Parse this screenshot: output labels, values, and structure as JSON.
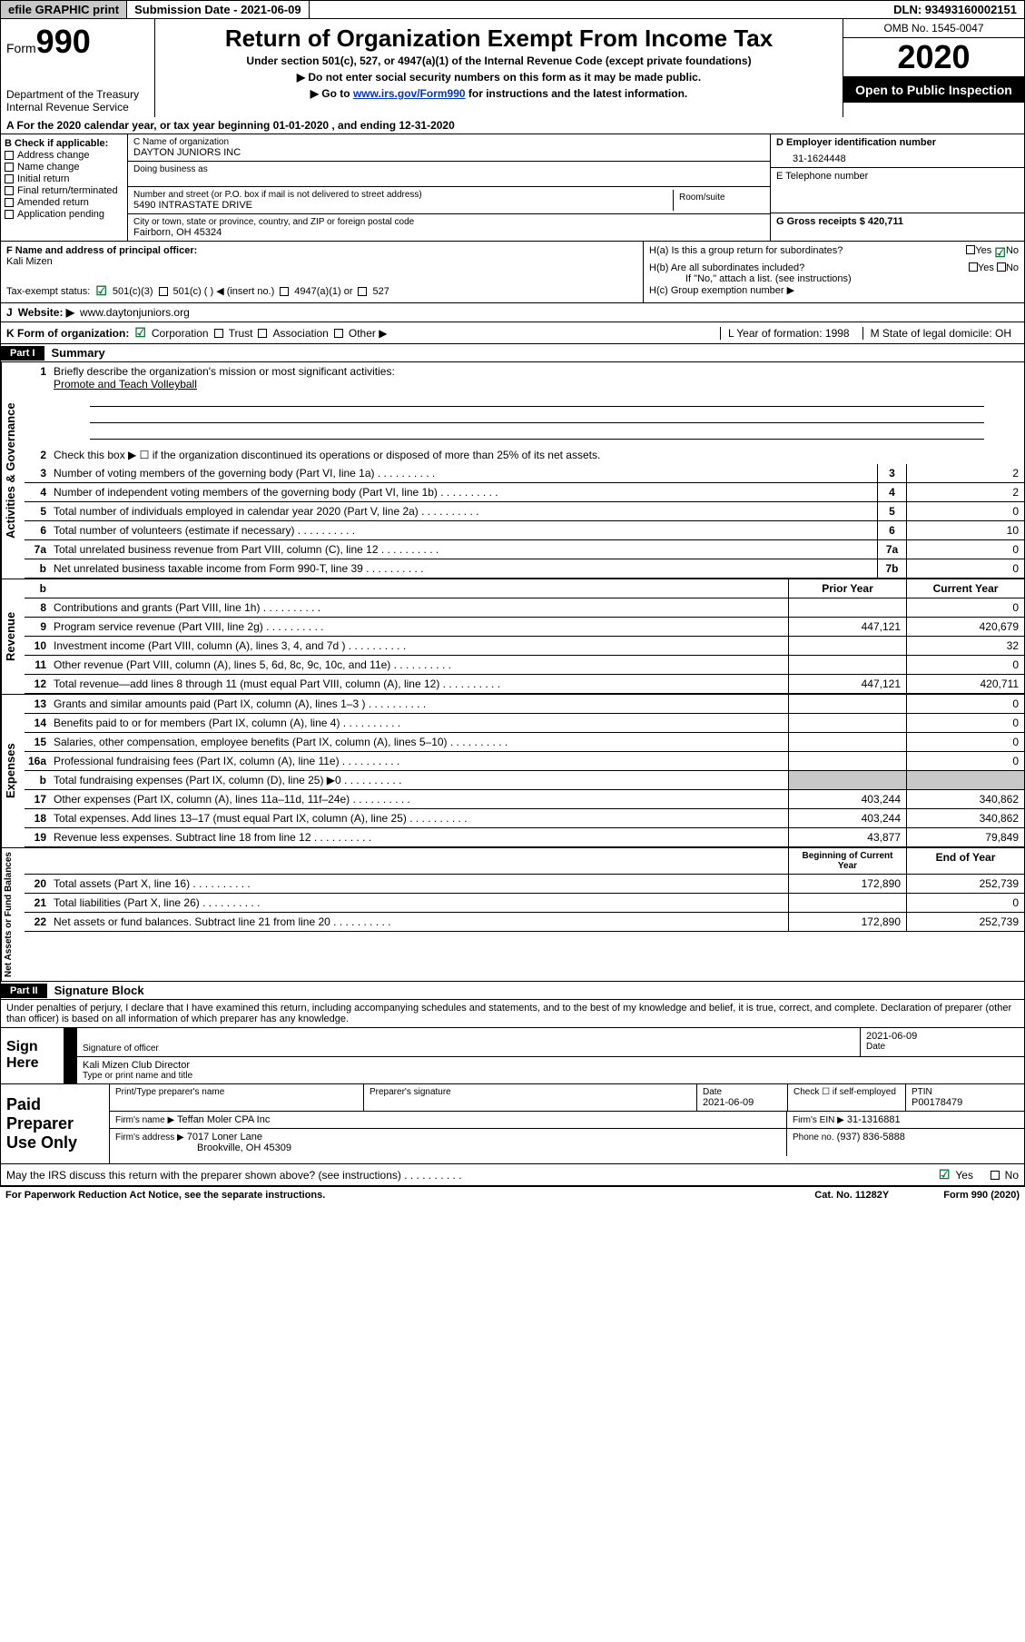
{
  "top": {
    "efile": "efile GRAPHIC print",
    "submission_label": "Submission Date - 2021-06-09",
    "dln_label": "DLN: 93493160002151"
  },
  "header": {
    "form_prefix": "Form",
    "form_no": "990",
    "dept1": "Department of the Treasury",
    "dept2": "Internal Revenue Service",
    "title": "Return of Organization Exempt From Income Tax",
    "subtitle": "Under section 501(c), 527, or 4947(a)(1) of the Internal Revenue Code (except private foundations)",
    "note1": "▶ Do not enter social security numbers on this form as it may be made public.",
    "note2_pre": "▶ Go to ",
    "note2_link": "www.irs.gov/Form990",
    "note2_post": " for instructions and the latest information.",
    "omb": "OMB No. 1545-0047",
    "year": "2020",
    "public": "Open to Public Inspection"
  },
  "rowA": "A For the 2020 calendar year, or tax year beginning 01-01-2020    , and ending 12-31-2020",
  "colB": {
    "title": "B Check if applicable:",
    "items": [
      "Address change",
      "Name change",
      "Initial return",
      "Final return/terminated",
      "Amended return",
      "Application pending"
    ]
  },
  "colC": {
    "name_lbl": "C Name of organization",
    "name": "DAYTON JUNIORS INC",
    "dba_lbl": "Doing business as",
    "addr_lbl": "Number and street (or P.O. box if mail is not delivered to street address)",
    "room_lbl": "Room/suite",
    "addr": "5490 INTRASTATE DRIVE",
    "city_lbl": "City or town, state or province, country, and ZIP or foreign postal code",
    "city": "Fairborn, OH  45324"
  },
  "colD": {
    "ein_lbl": "D Employer identification number",
    "ein": "31-1624448",
    "tel_lbl": "E Telephone number",
    "gross_lbl": "G Gross receipts $ 420,711"
  },
  "rowFH": {
    "f_lbl": "F  Name and address of principal officer:",
    "f_name": "Kali Mizen",
    "ha": "H(a)  Is this a group return for subordinates?",
    "hb": "H(b)  Are all subordinates included?",
    "hb_note": "If \"No,\" attach a list. (see instructions)",
    "hc": "H(c)  Group exemption number ▶",
    "yes": "Yes",
    "no": "No"
  },
  "rowI": {
    "lbl": "Tax-exempt status:",
    "o1": "501(c)(3)",
    "o2": "501(c) (  ) ◀ (insert no.)",
    "o3": "4947(a)(1) or",
    "o4": "527"
  },
  "rowJ": {
    "lbl": "J",
    "web": "Website: ▶",
    "val": "  www.daytonjuniors.org"
  },
  "rowK": {
    "lbl": "K Form of organization:",
    "opts": [
      "Corporation",
      "Trust",
      "Association",
      "Other ▶"
    ],
    "l_lbl": "L Year of formation: 1998",
    "m_lbl": "M State of legal domicile: OH"
  },
  "part1": {
    "hdr": "Part I",
    "title": "Summary",
    "gov_lbl": "Activities & Governance",
    "l1": "Briefly describe the organization's mission or most significant activities:",
    "l1_val": "Promote and Teach Volleyball",
    "l2": "Check this box ▶ ☐  if the organization discontinued its operations or disposed of more than 25% of its net assets.",
    "lines": [
      {
        "n": "3",
        "t": "Number of voting members of the governing body (Part VI, line 1a)",
        "c": "3",
        "v": "2"
      },
      {
        "n": "4",
        "t": "Number of independent voting members of the governing body (Part VI, line 1b)",
        "c": "4",
        "v": "2"
      },
      {
        "n": "5",
        "t": "Total number of individuals employed in calendar year 2020 (Part V, line 2a)",
        "c": "5",
        "v": "0"
      },
      {
        "n": "6",
        "t": "Total number of volunteers (estimate if necessary)",
        "c": "6",
        "v": "10"
      },
      {
        "n": "7a",
        "t": "Total unrelated business revenue from Part VIII, column (C), line 12",
        "c": "7a",
        "v": "0"
      },
      {
        "n": "b",
        "t": "Net unrelated business taxable income from Form 990-T, line 39",
        "c": "7b",
        "v": "0"
      }
    ],
    "rev_lbl": "Revenue",
    "col_prior": "Prior Year",
    "col_current": "Current Year",
    "rev_lines": [
      {
        "n": "8",
        "t": "Contributions and grants (Part VIII, line 1h)",
        "p": "",
        "c": "0"
      },
      {
        "n": "9",
        "t": "Program service revenue (Part VIII, line 2g)",
        "p": "447,121",
        "c": "420,679"
      },
      {
        "n": "10",
        "t": "Investment income (Part VIII, column (A), lines 3, 4, and 7d )",
        "p": "",
        "c": "32"
      },
      {
        "n": "11",
        "t": "Other revenue (Part VIII, column (A), lines 5, 6d, 8c, 9c, 10c, and 11e)",
        "p": "",
        "c": "0"
      },
      {
        "n": "12",
        "t": "Total revenue—add lines 8 through 11 (must equal Part VIII, column (A), line 12)",
        "p": "447,121",
        "c": "420,711"
      }
    ],
    "exp_lbl": "Expenses",
    "exp_lines": [
      {
        "n": "13",
        "t": "Grants and similar amounts paid (Part IX, column (A), lines 1–3 )",
        "p": "",
        "c": "0"
      },
      {
        "n": "14",
        "t": "Benefits paid to or for members (Part IX, column (A), line 4)",
        "p": "",
        "c": "0"
      },
      {
        "n": "15",
        "t": "Salaries, other compensation, employee benefits (Part IX, column (A), lines 5–10)",
        "p": "",
        "c": "0"
      },
      {
        "n": "16a",
        "t": "Professional fundraising fees (Part IX, column (A), line 11e)",
        "p": "",
        "c": "0"
      },
      {
        "n": "b",
        "t": "Total fundraising expenses (Part IX, column (D), line 25) ▶0",
        "p": "gray",
        "c": "gray"
      },
      {
        "n": "17",
        "t": "Other expenses (Part IX, column (A), lines 11a–11d, 11f–24e)",
        "p": "403,244",
        "c": "340,862"
      },
      {
        "n": "18",
        "t": "Total expenses. Add lines 13–17 (must equal Part IX, column (A), line 25)",
        "p": "403,244",
        "c": "340,862"
      },
      {
        "n": "19",
        "t": "Revenue less expenses. Subtract line 18 from line 12",
        "p": "43,877",
        "c": "79,849"
      }
    ],
    "net_lbl": "Net Assets or Fund Balances",
    "col_begin": "Beginning of Current Year",
    "col_end": "End of Year",
    "net_lines": [
      {
        "n": "20",
        "t": "Total assets (Part X, line 16)",
        "p": "172,890",
        "c": "252,739"
      },
      {
        "n": "21",
        "t": "Total liabilities (Part X, line 26)",
        "p": "",
        "c": "0"
      },
      {
        "n": "22",
        "t": "Net assets or fund balances. Subtract line 21 from line 20",
        "p": "172,890",
        "c": "252,739"
      }
    ]
  },
  "part2": {
    "hdr": "Part II",
    "title": "Signature Block",
    "declare": "Under penalties of perjury, I declare that I have examined this return, including accompanying schedules and statements, and to the best of my knowledge and belief, it is true, correct, and complete. Declaration of preparer (other than officer) is based on all information of which preparer has any knowledge.",
    "sign_here": "Sign Here",
    "sig_officer": "Signature of officer",
    "sig_date": "2021-06-09",
    "date_lbl": "Date",
    "sig_name": "Kali Mizen  Club Director",
    "sig_type": "Type or print name and title",
    "prep_lbl": "Paid Preparer Use Only",
    "prep_name_lbl": "Print/Type preparer's name",
    "prep_sig_lbl": "Preparer's signature",
    "prep_date_lbl": "Date",
    "prep_date": "2021-06-09",
    "prep_check": "Check ☐  if self-employed",
    "ptin_lbl": "PTIN",
    "ptin": "P00178479",
    "firm_name_lbl": "Firm's name    ▶",
    "firm_name": "Teffan Moler CPA Inc",
    "firm_ein_lbl": "Firm's EIN ▶",
    "firm_ein": "31-1316881",
    "firm_addr_lbl": "Firm's address ▶",
    "firm_addr1": "7017 Loner Lane",
    "firm_addr2": "Brookville, OH  45309",
    "phone_lbl": "Phone no.",
    "phone": "(937) 836-5888",
    "discuss": "May the IRS discuss this return with the preparer shown above? (see instructions)",
    "yes": "Yes",
    "no": "No"
  },
  "footer": {
    "pra": "For Paperwork Reduction Act Notice, see the separate instructions.",
    "cat": "Cat. No. 11282Y",
    "form": "Form 990 (2020)"
  }
}
